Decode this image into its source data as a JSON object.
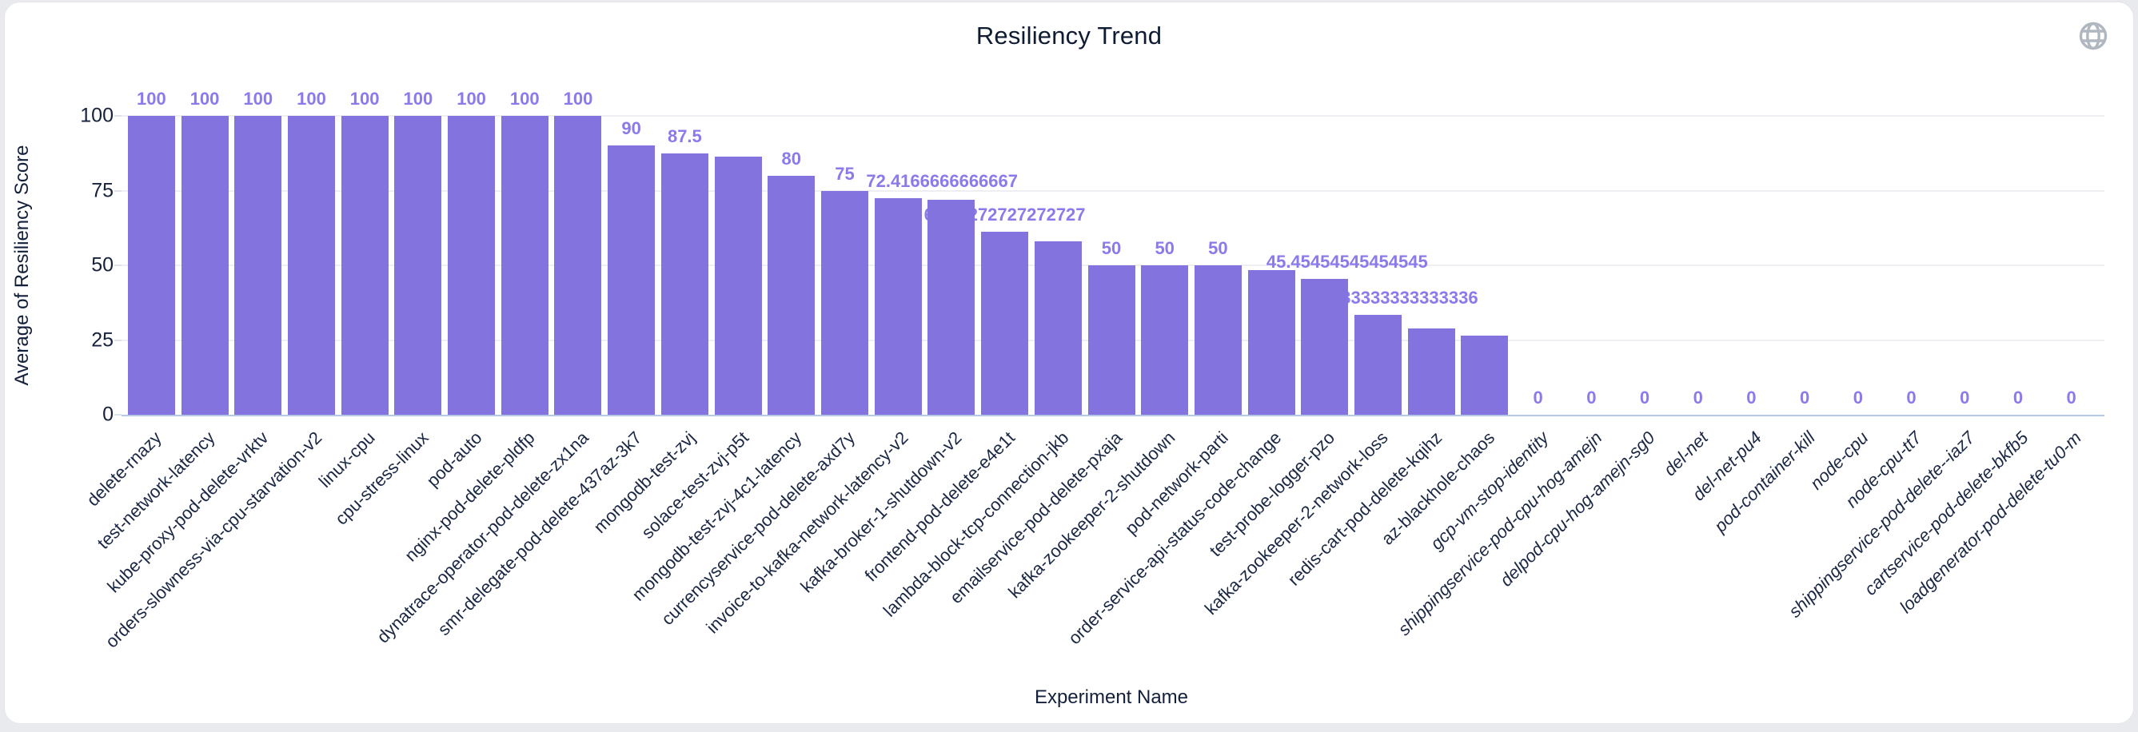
{
  "card": {
    "title": "Resiliency Trend",
    "globe_icon": "globe-icon",
    "globe_color": "#b1b7c1"
  },
  "chart_data": {
    "type": "bar",
    "title": "Resiliency Trend",
    "xlabel": "Experiment Name",
    "ylabel": "Average of Resiliency Score",
    "ylim": [
      0,
      100
    ],
    "yticks": [
      0,
      25,
      50,
      75,
      100
    ],
    "grid": true,
    "legend": "none",
    "bar_color": "#8373df",
    "value_label_color": "#8a7aec",
    "axis_text_color": "#16223c",
    "baseline_color": "#b5c7e9",
    "categories": [
      "delete-rnazy",
      "test-network-latency",
      "kube-proxy-pod-delete-vrktv",
      "orders-slowness-via-cpu-starvation-v2",
      "linux-cpu",
      "cpu-stress-linux",
      "pod-auto",
      "nginx-pod-delete-pldfp",
      "dynatrace-operator-pod-delete-zx1na",
      "smr-delegate-pod-delete-437az-3k7",
      "mongodb-test-zvj",
      "solace-test-zvj-p5t",
      "mongodb-test-zvj-4c1-latency",
      "currencyservice-pod-delete-axd7y",
      "invoice-to-kafka-network-latency-v2",
      "kafka-broker-1-shutdown-v2",
      "frontend-pod-delete-e4e1t",
      "lambda-block-tcp-connection-jkb",
      "emailservice-pod-delete-pxaja",
      "kafka-zookeeper-2-shutdown",
      "pod-network-parti",
      "order-service-api-status-code-change",
      "test-probe-logger-pzo",
      "kafka-zookeeper-2-network-loss",
      "redis-cart-pod-delete-kqihz",
      "az-blackhole-chaos",
      "gcp-vm-stop-identity",
      "shippingservice-pod-cpu-hog-amejn",
      "delpod-cpu-hog-amejn-sg0",
      "del-net",
      "del-net-pu4",
      "pod-container-kill",
      "node-cpu",
      "node-cpu-tt7",
      "shippingservice-pod-delete--iaz7",
      "cartservice-pod-delete-bkfb5",
      "loadgenerator-pod-delete-tu0-m"
    ],
    "values": [
      100,
      100,
      100,
      100,
      100,
      100,
      100,
      100,
      100,
      90,
      87.5,
      86.5,
      80,
      75,
      72.4166666666667,
      72,
      61.27272727272727,
      58,
      50,
      50,
      50,
      48.5,
      45.45454545454545,
      33.333333333333336,
      29,
      26.5,
      0,
      0,
      0,
      0,
      0,
      0,
      0,
      0,
      0,
      0,
      0
    ],
    "value_labels": [
      "100",
      "100",
      "100",
      "100",
      "100",
      "100",
      "100",
      "100",
      "100",
      "90",
      "87.5",
      null,
      "80",
      "75",
      "72.4166666666667",
      null,
      "61.27272727272727",
      null,
      "50",
      "50",
      "50",
      null,
      "45.45454545454545",
      "33.333333333333336",
      null,
      null,
      "0",
      "0",
      "0",
      "0",
      "0",
      "0",
      "0",
      "0",
      "0",
      "0",
      "0"
    ],
    "label_dx": {
      "14": 55,
      "22": 28,
      "23": 18
    },
    "italic_category_start": 26
  }
}
